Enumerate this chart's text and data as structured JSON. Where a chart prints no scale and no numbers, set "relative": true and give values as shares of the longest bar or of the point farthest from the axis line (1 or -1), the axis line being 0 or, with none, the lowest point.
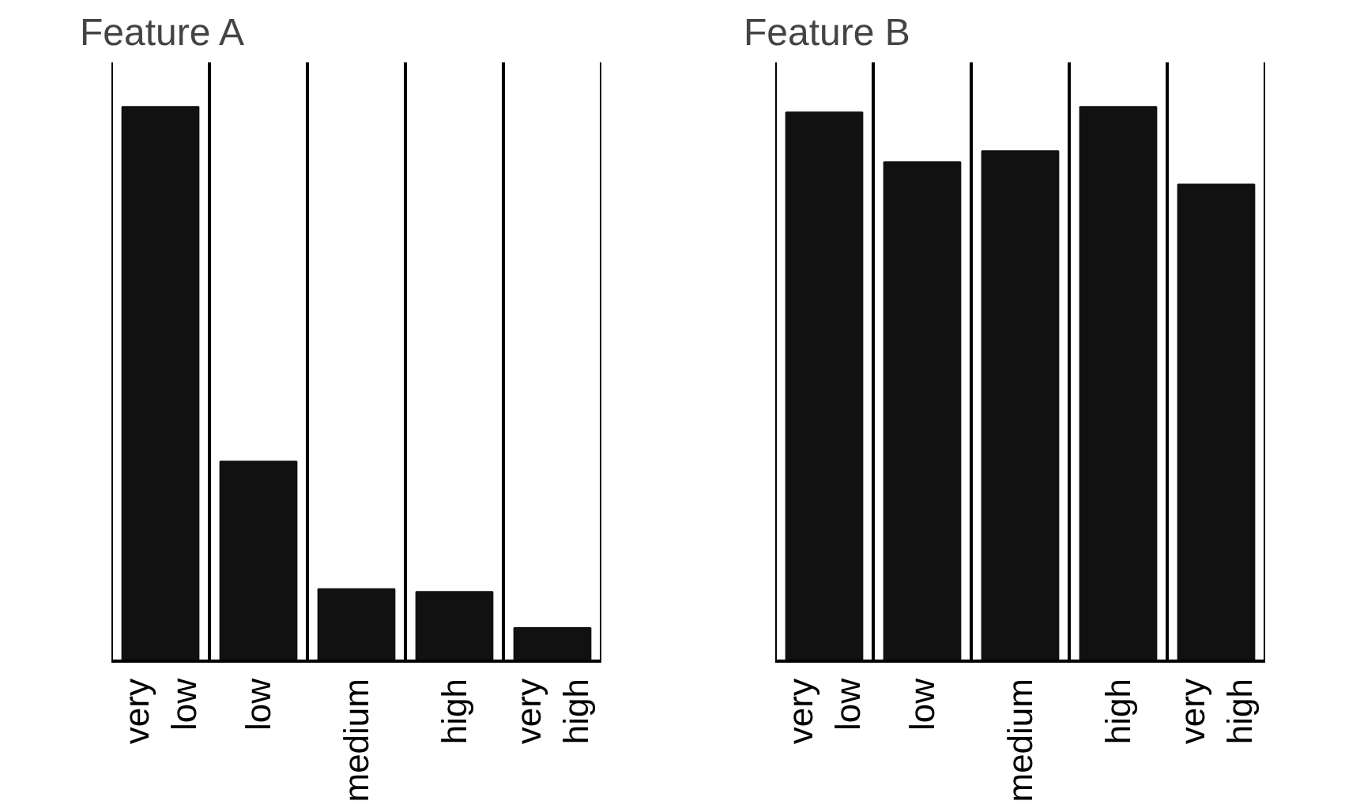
{
  "chart_data": [
    {
      "type": "bar",
      "title": "Feature A",
      "categories": [
        "very low",
        "low",
        "medium",
        "high",
        "very high"
      ],
      "values": [
        1,
        0.36,
        0.13,
        0.125,
        0.06
      ],
      "color": "#111111",
      "relative": true,
      "grid": "x"
    },
    {
      "type": "bar",
      "title": "Feature B",
      "categories": [
        "very low",
        "low",
        "medium",
        "high",
        "very high"
      ],
      "values": [
        0.99,
        0.9,
        0.92,
        1,
        0.86
      ],
      "color": "#111111",
      "relative": true,
      "grid": "x"
    }
  ]
}
